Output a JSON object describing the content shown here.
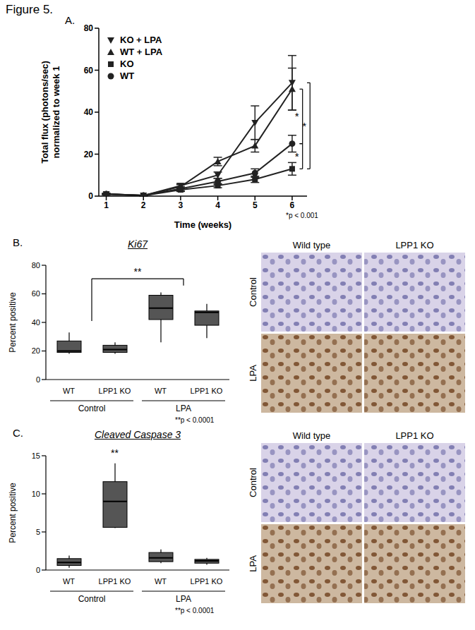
{
  "figure_title": "Figure 5.",
  "chart_data": [
    {
      "panel": "A.",
      "type": "line",
      "x_label": "Time (weeks)",
      "y_label": [
        "Total flux (photons/sec)",
        "normalized to week 1"
      ],
      "x": [
        1,
        2,
        3,
        4,
        5,
        6
      ],
      "xlim": [
        0.8,
        6.4
      ],
      "xticks": [
        1,
        2,
        3,
        4,
        5,
        6
      ],
      "ylim": [
        0,
        80
      ],
      "yticks": [
        0,
        20,
        40,
        60,
        80
      ],
      "legend": "upper left",
      "series": [
        {
          "name": "KO + LPA",
          "color": "#222222",
          "marker": "triangle-down",
          "values": [
            1,
            0.3,
            5,
            10,
            35,
            54
          ],
          "errors": [
            0.3,
            0.1,
            1,
            1.5,
            8,
            13
          ]
        },
        {
          "name": "WT + LPA",
          "color": "#222222",
          "marker": "triangle-up",
          "values": [
            1,
            0.3,
            4.5,
            16.5,
            24,
            51
          ],
          "errors": [
            0.3,
            0.1,
            1,
            2,
            3,
            10
          ]
        },
        {
          "name": "KO",
          "color": "#222222",
          "marker": "square",
          "values": [
            1,
            0.2,
            3,
            5,
            8,
            13
          ],
          "errors": [
            0.2,
            0.1,
            0.8,
            1,
            1.5,
            3
          ]
        },
        {
          "name": "WT",
          "color": "#222222",
          "marker": "circle",
          "values": [
            1,
            0.3,
            3.5,
            7,
            11,
            25
          ],
          "errors": [
            0.3,
            0.1,
            1,
            1.5,
            2,
            4
          ]
        }
      ],
      "annotations": [
        {
          "text": "*",
          "between": [
            "WT + LPA",
            "WT"
          ]
        },
        {
          "text": "*",
          "between": [
            "WT",
            "KO"
          ]
        },
        {
          "text": "*",
          "between": [
            "KO + LPA",
            "KO"
          ]
        }
      ],
      "note": "*p < 0.001"
    },
    {
      "panel": "B.",
      "type": "box",
      "title": "Ki67",
      "y_label": "Percent positive",
      "categories": [
        "WT",
        "LPP1 KO",
        "WT",
        "LPP1 KO"
      ],
      "groups": [
        "Control",
        "LPA"
      ],
      "ylim": [
        0,
        80
      ],
      "yticks": [
        0,
        20,
        40,
        60,
        80
      ],
      "color": "#555555",
      "boxes": {
        "min": [
          18,
          18,
          26,
          29
        ],
        "q1": [
          19,
          19,
          42,
          38
        ],
        "median": [
          20,
          21,
          50,
          47
        ],
        "q3": [
          27,
          24,
          59,
          48
        ],
        "max": [
          33,
          26,
          61,
          53
        ]
      },
      "annotations": [
        {
          "text": "**",
          "between": [
            "Control",
            "LPA"
          ]
        }
      ],
      "note": "**p < 0.0001",
      "images": {
        "columns": [
          "Wild type",
          "LPP1 KO"
        ],
        "rows": [
          "Control",
          "LPA"
        ]
      }
    },
    {
      "panel": "C.",
      "type": "box",
      "title": "Cleaved Caspase 3",
      "y_label": "Percent positive",
      "categories": [
        "WT",
        "LPP1 KO",
        "WT",
        "LPP1 KO"
      ],
      "groups": [
        "Control",
        "LPA"
      ],
      "ylim": [
        0,
        15
      ],
      "yticks": [
        0,
        5,
        10,
        15
      ],
      "color": "#555555",
      "boxes": {
        "min": [
          0.3,
          5.5,
          0.9,
          0.7
        ],
        "q1": [
          0.6,
          5.6,
          1.1,
          0.9
        ],
        "median": [
          1,
          9,
          1.6,
          1.2
        ],
        "q3": [
          1.5,
          11.6,
          2.3,
          1.4
        ],
        "max": [
          1.9,
          14,
          2.7,
          1.6
        ]
      },
      "annotations": [
        {
          "text": "**",
          "group": "Control",
          "category": "LPP1 KO"
        }
      ],
      "note": "**p < 0.0001",
      "images": {
        "columns": [
          "Wild type",
          "LPP1 KO"
        ],
        "rows": [
          "Control",
          "LPA"
        ]
      }
    }
  ]
}
